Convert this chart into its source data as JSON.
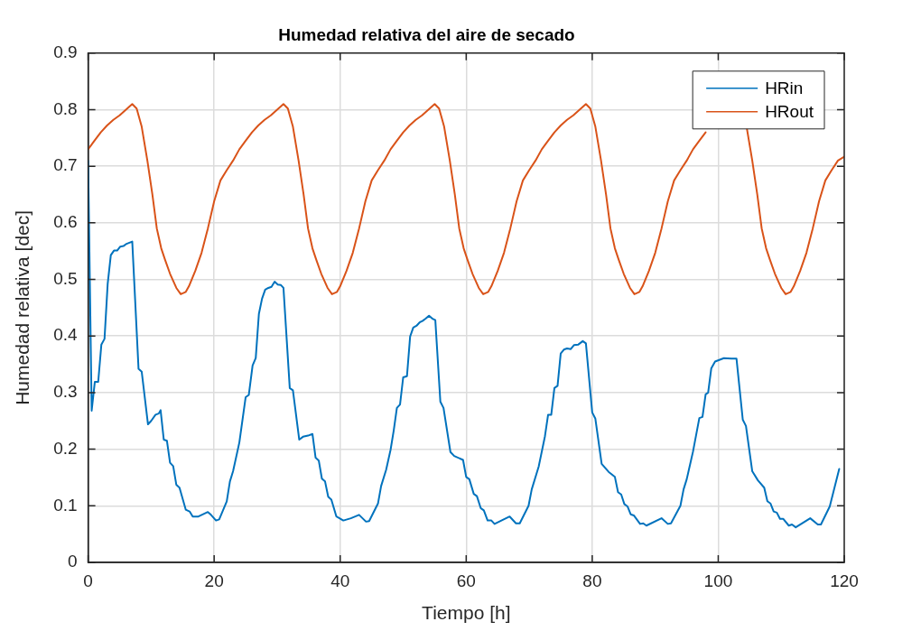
{
  "chart_data": {
    "type": "line",
    "title": "Humedad relativa del aire de secado",
    "xlabel": "Tiempo [h]",
    "ylabel": "Humedad relativa [dec]",
    "xlim": [
      0,
      120
    ],
    "xticks": [
      0,
      20,
      40,
      60,
      80,
      100,
      120
    ],
    "ylim": [
      0,
      0.9
    ],
    "yticks": [
      0,
      0.1,
      0.2,
      0.3,
      0.4,
      0.5,
      0.6,
      0.7,
      0.8,
      0.9
    ],
    "grid": true,
    "legend": "top right",
    "marker": "none",
    "line_style": "solid",
    "series": [
      {
        "name": "HRin",
        "color": "#0072bd",
        "x": [
          0,
          0.56,
          1.06,
          1.6,
          2.1,
          2.6,
          3.1,
          3.6,
          4.1,
          4.6,
          5.1,
          5.6,
          6.1,
          7.0,
          8.0,
          8.5,
          9.5,
          10.0,
          10.7,
          11.2,
          11.5,
          12.0,
          12.5,
          13.0,
          13.5,
          14.0,
          14.5,
          15.5,
          16.1,
          16.6,
          17.5,
          19.0,
          19.5,
          20.3,
          20.8,
          22.0,
          22.5,
          23.0,
          24.0,
          25.0,
          25.5,
          26.1,
          26.6,
          27.1,
          27.6,
          28.1,
          28.6,
          29.1,
          29.6,
          30.1,
          30.6,
          31.0,
          32.0,
          32.5,
          33.5,
          34.1,
          34.9,
          35.6,
          36.1,
          36.6,
          37.1,
          37.6,
          38.1,
          38.6,
          39.4,
          39.9,
          40.5,
          41.7,
          43.0,
          44.1,
          44.6,
          46.0,
          46.5,
          47.3,
          48.0,
          48.5,
          49.0,
          49.5,
          50.0,
          50.6,
          51.1,
          51.6,
          52.1,
          52.6,
          53.1,
          53.6,
          54.1,
          54.6,
          55.1,
          55.9,
          56.4,
          57.5,
          58.1,
          59.5,
          60.0,
          60.5,
          61.2,
          61.7,
          62.3,
          62.8,
          63.4,
          64.0,
          64.5,
          66.9,
          67.9,
          68.5,
          69.9,
          70.4,
          71.5,
          72.5,
          73.0,
          73.5,
          74.0,
          74.5,
          75.0,
          75.5,
          76.0,
          76.6,
          77.1,
          77.8,
          78.5,
          79.0,
          80.0,
          80.5,
          81.5,
          82.6,
          83.6,
          84.1,
          84.6,
          85.1,
          85.6,
          86.1,
          86.6,
          87.6,
          88.1,
          88.6,
          91.0,
          92.0,
          92.5,
          94.0,
          94.5,
          95.0,
          96.0,
          97.0,
          97.5,
          98.0,
          98.4,
          98.9,
          99.5,
          100.9,
          102.1,
          102.9,
          103.9,
          104.4,
          105.4,
          106.3,
          107.3,
          107.8,
          108.3,
          108.8,
          109.3,
          109.8,
          110.3,
          111.2,
          111.7,
          112.3,
          114.6,
          115.8,
          116.3,
          117.7,
          119.2
        ],
        "values": [
          0.71,
          0.268,
          0.319,
          0.319,
          0.385,
          0.395,
          0.492,
          0.543,
          0.551,
          0.551,
          0.558,
          0.559,
          0.563,
          0.567,
          0.342,
          0.337,
          0.244,
          0.25,
          0.261,
          0.263,
          0.269,
          0.217,
          0.215,
          0.176,
          0.17,
          0.137,
          0.132,
          0.093,
          0.09,
          0.081,
          0.081,
          0.089,
          0.084,
          0.074,
          0.076,
          0.108,
          0.143,
          0.161,
          0.212,
          0.292,
          0.296,
          0.348,
          0.361,
          0.439,
          0.466,
          0.482,
          0.485,
          0.487,
          0.496,
          0.491,
          0.49,
          0.485,
          0.308,
          0.304,
          0.217,
          0.222,
          0.224,
          0.227,
          0.185,
          0.18,
          0.148,
          0.143,
          0.116,
          0.111,
          0.081,
          0.078,
          0.074,
          0.078,
          0.084,
          0.072,
          0.073,
          0.104,
          0.135,
          0.164,
          0.199,
          0.233,
          0.273,
          0.279,
          0.327,
          0.329,
          0.399,
          0.415,
          0.418,
          0.424,
          0.427,
          0.431,
          0.436,
          0.431,
          0.428,
          0.284,
          0.273,
          0.195,
          0.188,
          0.181,
          0.151,
          0.147,
          0.121,
          0.117,
          0.096,
          0.092,
          0.074,
          0.074,
          0.068,
          0.081,
          0.069,
          0.069,
          0.1,
          0.129,
          0.169,
          0.223,
          0.261,
          0.261,
          0.308,
          0.312,
          0.369,
          0.376,
          0.378,
          0.377,
          0.384,
          0.385,
          0.391,
          0.387,
          0.265,
          0.254,
          0.174,
          0.16,
          0.151,
          0.124,
          0.12,
          0.103,
          0.099,
          0.085,
          0.083,
          0.068,
          0.069,
          0.065,
          0.078,
          0.068,
          0.069,
          0.1,
          0.129,
          0.147,
          0.196,
          0.255,
          0.257,
          0.297,
          0.3,
          0.343,
          0.355,
          0.361,
          0.36,
          0.36,
          0.252,
          0.241,
          0.161,
          0.145,
          0.132,
          0.108,
          0.104,
          0.09,
          0.088,
          0.077,
          0.077,
          0.065,
          0.067,
          0.062,
          0.078,
          0.067,
          0.067,
          0.099,
          0.165
        ]
      },
      {
        "name": "HRout",
        "color": "#d95319",
        "x": [
          0,
          1,
          2,
          3,
          4,
          5,
          6,
          7,
          7.7,
          8.5,
          9.4,
          10.2,
          10.9,
          11.6,
          12.2,
          13,
          14,
          14.7,
          15.5,
          16,
          17,
          18,
          19,
          20,
          21,
          22,
          23,
          24,
          25,
          26,
          27,
          28,
          29,
          30,
          31,
          31.7,
          32.5,
          33.4,
          34.2,
          34.9,
          35.6,
          36.2,
          37,
          38,
          38.7,
          39.5,
          40,
          41,
          42,
          43,
          44,
          45,
          46,
          47,
          48,
          49,
          50,
          51,
          52,
          53,
          54,
          55,
          55.7,
          56.5,
          57.4,
          58.2,
          58.9,
          59.6,
          60.2,
          61,
          62,
          62.7,
          63.5,
          64,
          65,
          66,
          67,
          68,
          69,
          70,
          71,
          72,
          73,
          74,
          75,
          76,
          77,
          78,
          79,
          79.7,
          80.5,
          81.4,
          82.2,
          82.9,
          83.6,
          84.2,
          85,
          86,
          86.7,
          87.5,
          88,
          89,
          90,
          91,
          92,
          93,
          94,
          95,
          96,
          97,
          98,
          99,
          100,
          101,
          102,
          103,
          103.7,
          104.5,
          105.4,
          106.2,
          106.9,
          107.6,
          108.2,
          109,
          110,
          110.7,
          111.5,
          112,
          113,
          114,
          115,
          116,
          117,
          118,
          119,
          120
        ],
        "values": [
          0.73,
          0.745,
          0.76,
          0.772,
          0.782,
          0.79,
          0.8,
          0.81,
          0.802,
          0.77,
          0.71,
          0.65,
          0.59,
          0.555,
          0.535,
          0.51,
          0.485,
          0.474,
          0.478,
          0.488,
          0.515,
          0.547,
          0.59,
          0.638,
          0.675,
          0.693,
          0.71,
          0.73,
          0.745,
          0.76,
          0.772,
          0.782,
          0.79,
          0.8,
          0.81,
          0.802,
          0.77,
          0.71,
          0.65,
          0.59,
          0.555,
          0.535,
          0.51,
          0.485,
          0.474,
          0.478,
          0.488,
          0.515,
          0.547,
          0.59,
          0.638,
          0.675,
          0.693,
          0.71,
          0.73,
          0.745,
          0.76,
          0.772,
          0.782,
          0.79,
          0.8,
          0.81,
          0.802,
          0.77,
          0.71,
          0.65,
          0.59,
          0.555,
          0.535,
          0.51,
          0.485,
          0.474,
          0.478,
          0.488,
          0.515,
          0.547,
          0.59,
          0.638,
          0.675,
          0.693,
          0.71,
          0.73,
          0.745,
          0.76,
          0.772,
          0.782,
          0.79,
          0.8,
          0.81,
          0.802,
          0.77,
          0.71,
          0.65,
          0.59,
          0.555,
          0.535,
          0.51,
          0.485,
          0.474,
          0.478,
          0.488,
          0.515,
          0.547,
          0.59,
          0.638,
          0.675,
          0.693,
          0.71,
          0.73,
          0.745,
          0.76,
          null,
          null,
          null,
          null,
          null,
          null,
          0.77,
          0.71,
          0.65,
          0.59,
          0.555,
          0.535,
          0.51,
          0.485,
          0.474,
          0.478,
          0.488,
          0.515,
          0.547,
          0.59,
          0.638,
          0.675,
          0.693,
          0.71,
          0.717
        ]
      }
    ]
  }
}
